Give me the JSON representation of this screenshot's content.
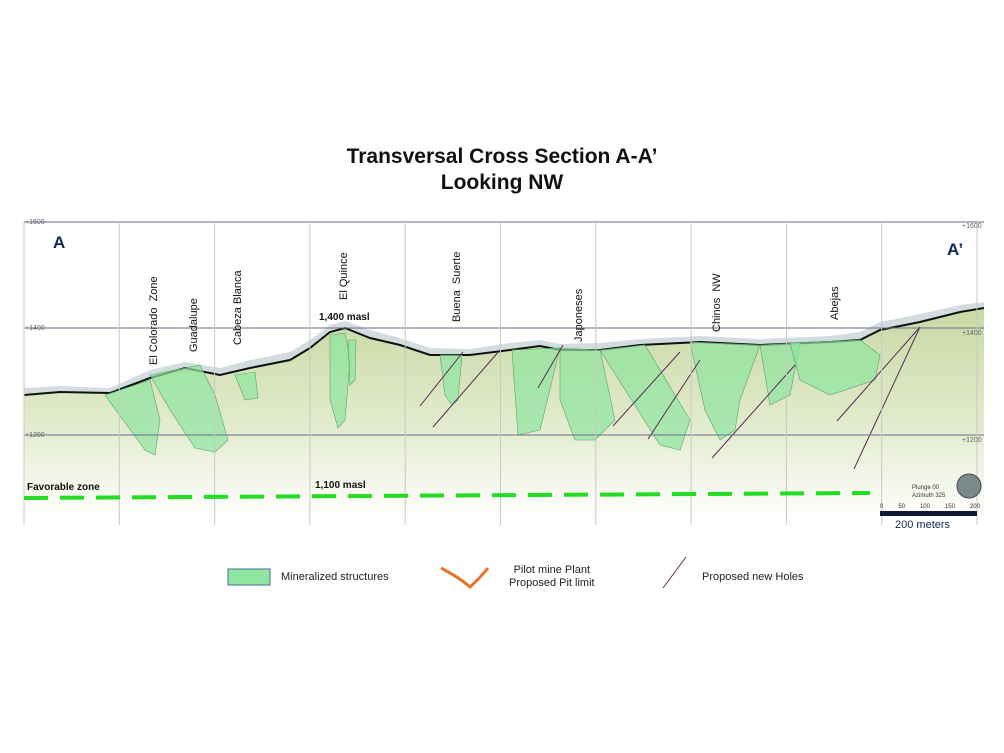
{
  "title": {
    "line1": "Transversal Cross Section A-A’",
    "line2": "Looking NW"
  },
  "section": {
    "start_label": "A",
    "end_label": "A’",
    "elevation_ticks": [
      "+1600",
      "+1400",
      "+1200"
    ],
    "zones": [
      "El Colorado  Zone",
      "Guadalupe",
      "Cabeza Blanca",
      "El Quince",
      "Buena  Suerte",
      "Japoneses",
      "Chinos  NW",
      "Abejas"
    ],
    "annotations": {
      "top": "1,400  masl",
      "bottom": "1,100  masl",
      "favorable": "Favorable zone"
    },
    "orientation": {
      "plunge": "Plunge 00",
      "azimuth": "Azimuth 325"
    },
    "scale": {
      "ticks": [
        "0",
        "50",
        "100",
        "150",
        "200"
      ],
      "label": "200 meters"
    }
  },
  "legend": {
    "mineralized": "Mineralized structures",
    "pit_line1": "Pilot mine Plant",
    "pit_line2": "Proposed Pit limit",
    "holes": "Proposed new Holes"
  },
  "colors": {
    "mineralized": "#8fe6a0",
    "favorable_line": "#22dd22",
    "holes": "#5a2a5a",
    "pit": "#e8732a",
    "label_blue": "#0d2a55"
  }
}
